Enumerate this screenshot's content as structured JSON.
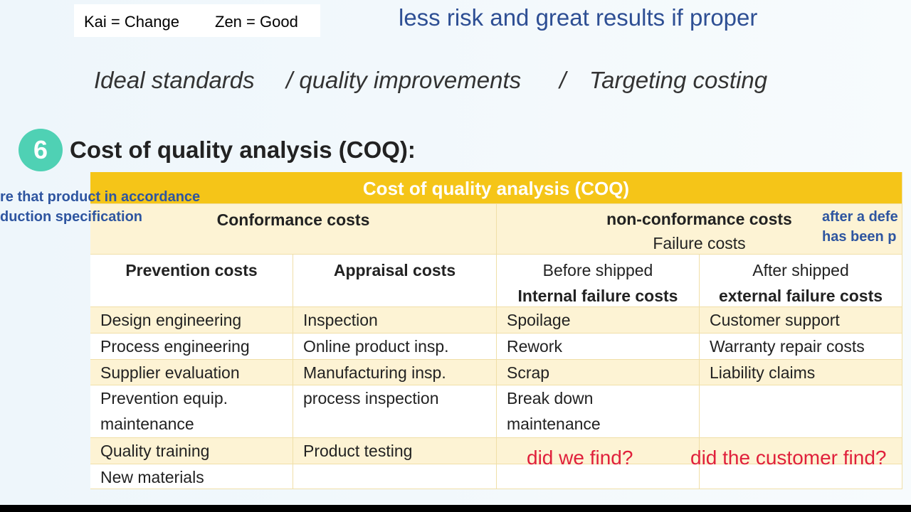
{
  "header": {
    "kai": "Kai = Change",
    "zen": "Zen = Good",
    "note": "less risk and great results if proper"
  },
  "subtitle": {
    "parts": [
      "Ideal standards",
      "/ quality improvements",
      "/",
      "Targeting costing"
    ]
  },
  "section": {
    "number": "6",
    "heading": "Cost of quality analysis (COQ):"
  },
  "annotations": {
    "left": [
      "re that product in accordance",
      "duction specification"
    ],
    "right": [
      "after a defe",
      "has been p"
    ],
    "internal": "did we find?",
    "external": "did the customer find?"
  },
  "table": {
    "title": "Cost of quality analysis (COQ)",
    "conformance": "Conformance costs",
    "nonconformance": "non-conformance costs",
    "failure": "Failure costs",
    "columns": [
      {
        "label": "Prevention costs"
      },
      {
        "label": "Appraisal costs"
      },
      {
        "note": "Before shipped",
        "label": "Internal failure costs"
      },
      {
        "note": "After shipped",
        "label": "external failure costs"
      }
    ],
    "rows": [
      [
        "Design engineering",
        "Inspection",
        "Spoilage",
        "Customer support"
      ],
      [
        "Process engineering",
        "Online product insp.",
        "Rework",
        "Warranty repair costs"
      ],
      [
        "Supplier evaluation",
        "Manufacturing insp.",
        "Scrap",
        "Liability claims"
      ],
      [
        "Prevention equip. maintenance",
        "process inspection",
        "Break down maintenance",
        null
      ],
      [
        "Quality training",
        "Product testing",
        null,
        null
      ],
      [
        "New materials",
        null,
        null,
        null
      ]
    ]
  }
}
